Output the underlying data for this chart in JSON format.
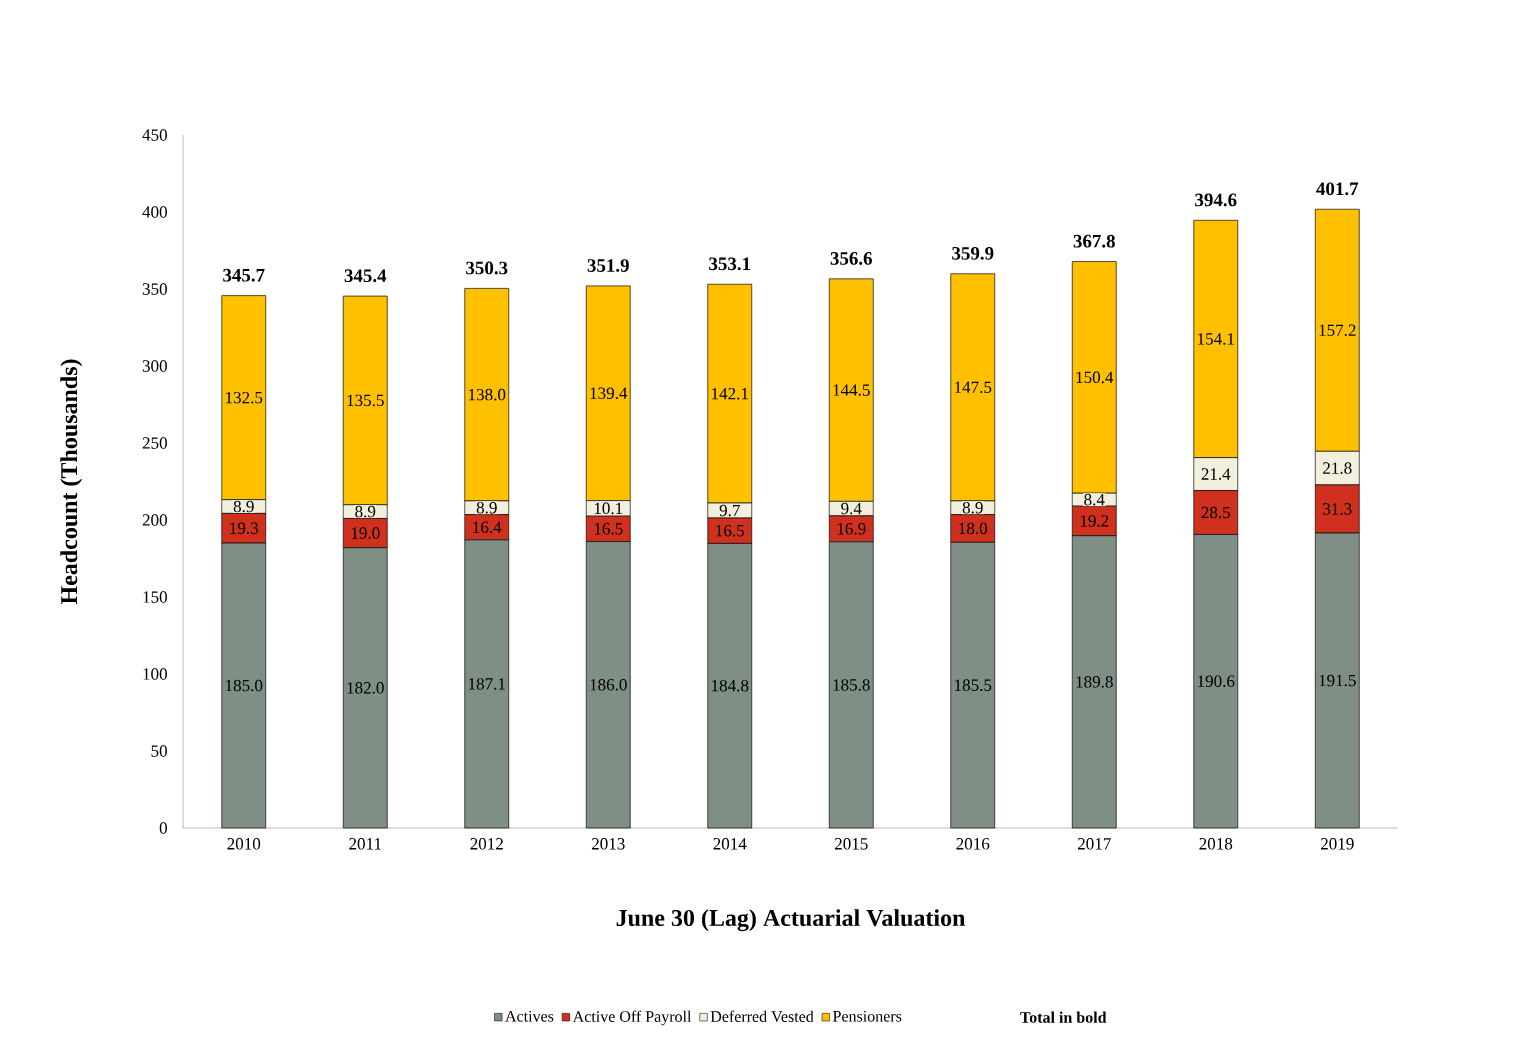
{
  "chart_data": {
    "type": "bar",
    "stacked": true,
    "xlabel": "June 30 (Lag) Actuarial Valuation",
    "ylabel": "Headcount  (Thousands)",
    "categories": [
      "2010",
      "2011",
      "2012",
      "2013",
      "2014",
      "2015",
      "2016",
      "2017",
      "2018",
      "2019"
    ],
    "series": [
      {
        "name": "Actives",
        "color": "#7f8f85",
        "values": [
          185.0,
          182.0,
          187.1,
          186.0,
          184.8,
          185.8,
          185.5,
          189.8,
          190.6,
          191.5
        ],
        "value_labels": [
          "185.0",
          "182.0",
          "187.1",
          "186.0",
          "184.8",
          "185.8",
          "185.5",
          "189.8",
          "190.6",
          "191.5"
        ]
      },
      {
        "name": "Active Off Payroll",
        "color": "#d0301e",
        "values": [
          19.3,
          19.0,
          16.4,
          16.5,
          16.5,
          16.9,
          18.0,
          19.2,
          28.5,
          31.3
        ],
        "value_labels": [
          "19.3",
          "19.0",
          "16.4",
          "16.5",
          "16.5",
          "16.9",
          "18.0",
          "19.2",
          "28.5",
          "31.3"
        ]
      },
      {
        "name": "Deferred Vested",
        "color": "#f2f0dc",
        "values": [
          8.9,
          8.9,
          8.9,
          10.1,
          9.7,
          9.4,
          8.9,
          8.4,
          21.4,
          21.8
        ],
        "value_labels": [
          "8.9",
          "8.9",
          "8.9",
          "10.1",
          "9.7",
          "9.4",
          "8.9",
          "8.4",
          "21.4",
          "21.8"
        ]
      },
      {
        "name": "Pensioners",
        "color": "#ffc000",
        "values": [
          132.5,
          135.5,
          138.0,
          139.4,
          142.1,
          144.5,
          147.5,
          150.4,
          154.1,
          157.2
        ],
        "value_labels": [
          "132.5",
          "135.5",
          "138.0",
          "139.4",
          "142.1",
          "144.5",
          "147.5",
          "150.4",
          "154.1",
          "157.2"
        ]
      }
    ],
    "totals": [
      "345.7",
      "345.4",
      "350.3",
      "351.9",
      "353.1",
      "356.6",
      "359.9",
      "367.8",
      "394.6",
      "401.7"
    ],
    "ylim": [
      0,
      450
    ],
    "yticks": [
      0,
      50,
      100,
      150,
      200,
      250,
      300,
      350,
      400,
      450
    ],
    "grid": false,
    "legend": "bottom",
    "annotations": [
      "Total in bold"
    ]
  }
}
